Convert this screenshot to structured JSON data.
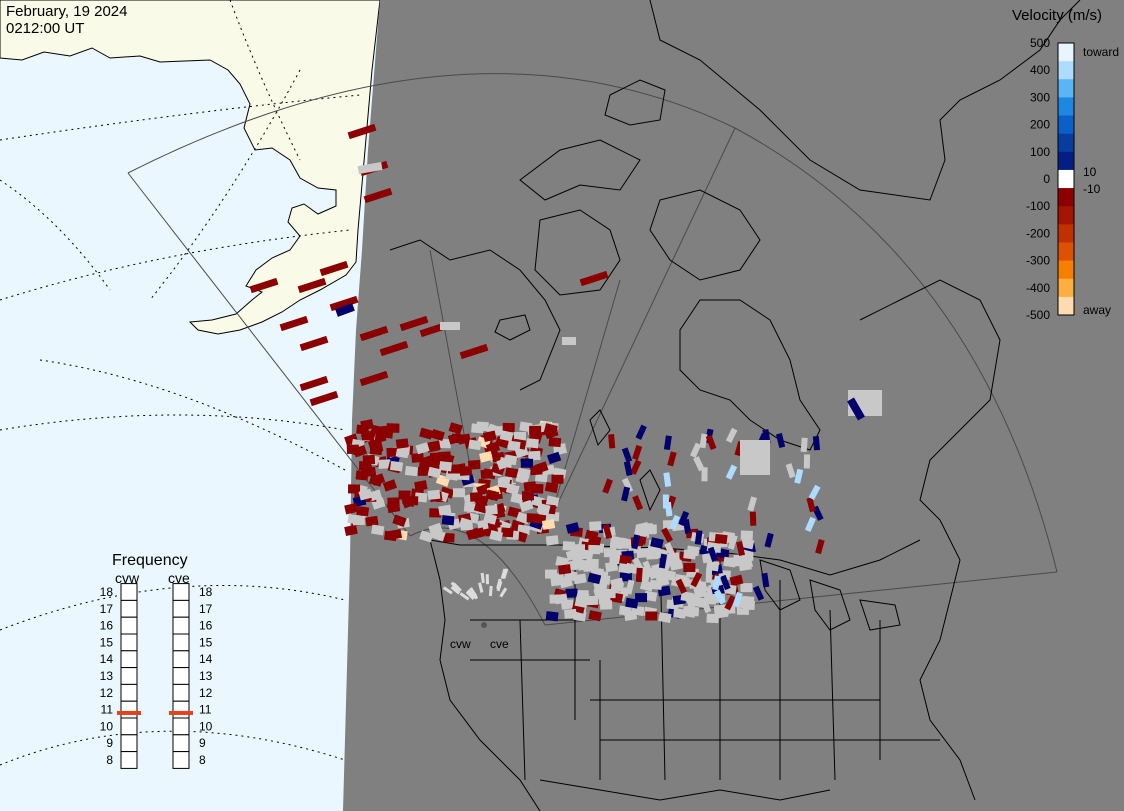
{
  "header": {
    "date": "February, 19 2024",
    "time": "0212:00 UT"
  },
  "colorbar": {
    "title": "Velocity (m/s)",
    "ticks": [
      "500",
      "400",
      "300",
      "200",
      "100",
      "0",
      "-100",
      "-200",
      "-300",
      "-400",
      "-500"
    ],
    "inner_labels": [
      "10",
      "-10"
    ],
    "toward_label": "toward",
    "away_label": "away",
    "colors": [
      "#e8f5ff",
      "#aedcff",
      "#5ab4f5",
      "#1e88e0",
      "#0a5fc8",
      "#073d9e",
      "#031f86",
      "#ffffff",
      "#8b0000",
      "#a51400",
      "#c03000",
      "#dd5200",
      "#f77f00",
      "#ffae40",
      "#ffdcb0"
    ]
  },
  "frequency": {
    "title": "Frequency",
    "radars": [
      "cvw",
      "cve"
    ],
    "scale": [
      "18",
      "17",
      "16",
      "15",
      "14",
      "13",
      "12",
      "11",
      "10",
      "9",
      "8"
    ],
    "selected_mhz": {
      "cvw": 10.8,
      "cve": 10.8
    }
  },
  "map": {
    "radar_labels": [
      "cvw",
      "cve"
    ],
    "colors": {
      "ocean": "#eaf7ff",
      "land_daylight": "#fafae8",
      "land_night": "#808080",
      "scatter_away": "#8b0000",
      "scatter_toward": "#02006b",
      "ground_scatter": "#c8c8c8"
    }
  }
}
